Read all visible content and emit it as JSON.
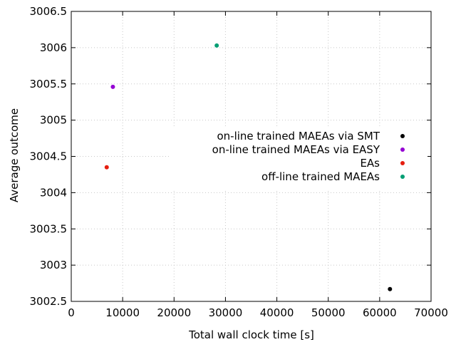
{
  "chart_data": {
    "type": "scatter",
    "title": "",
    "xlabel": "Total wall clock time [s]",
    "ylabel": "Average outcome",
    "xlim": [
      0,
      70000
    ],
    "ylim": [
      3002.5,
      3006.5
    ],
    "x_ticks": [
      0,
      10000,
      20000,
      30000,
      40000,
      50000,
      60000,
      70000
    ],
    "y_ticks": [
      3002.5,
      3003,
      3003.5,
      3004,
      3004.5,
      3005,
      3005.5,
      3006,
      3006.5
    ],
    "x_tick_labels": [
      "0",
      "10000",
      "20000",
      "30000",
      "40000",
      "50000",
      "60000",
      "70000"
    ],
    "y_tick_labels": [
      "3002.5",
      "3003",
      "3003.5",
      "3004",
      "3004.5",
      "3005",
      "3005.5",
      "3006",
      "3006.5"
    ],
    "grid": true,
    "legend_position": "right",
    "series": [
      {
        "name": "on-line trained MAEAs via SMT",
        "color": "#000000",
        "points": [
          {
            "x": 62000,
            "y": 3002.67
          }
        ]
      },
      {
        "name": "on-line trained MAEAs via EASY",
        "color": "#9400d3",
        "points": [
          {
            "x": 8100,
            "y": 3005.46
          }
        ]
      },
      {
        "name": "EAs",
        "color": "#e51e10",
        "points": [
          {
            "x": 6900,
            "y": 3004.35
          }
        ]
      },
      {
        "name": "off-line trained MAEAs",
        "color": "#009e73",
        "points": [
          {
            "x": 28300,
            "y": 3006.03
          }
        ]
      }
    ]
  }
}
